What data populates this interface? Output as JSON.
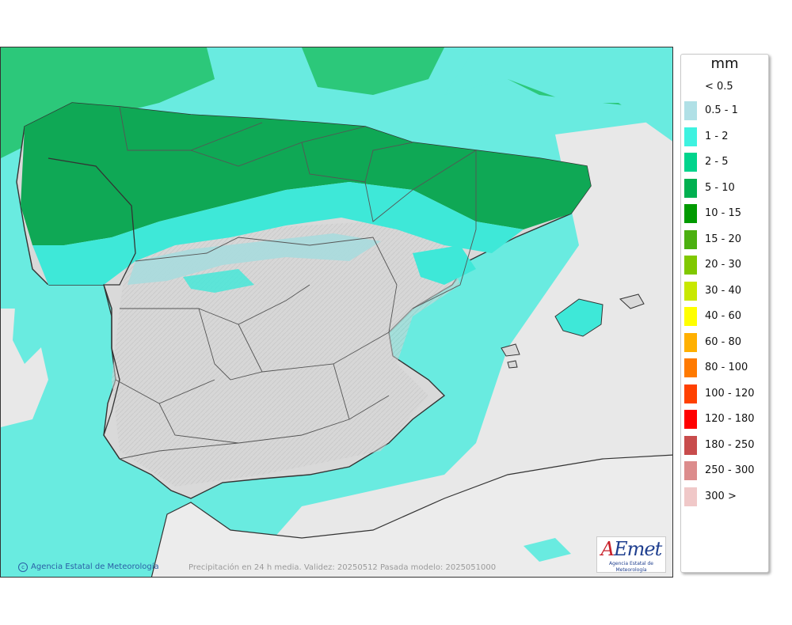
{
  "legend": {
    "unit": "mm",
    "first_label": "< 0.5",
    "items": [
      {
        "label": "0.5 - 1",
        "color": "#b0e0e6"
      },
      {
        "label": "1 - 2",
        "color": "#3ef2e0"
      },
      {
        "label": "2 - 5",
        "color": "#00d48c"
      },
      {
        "label": "5 - 10",
        "color": "#00b050"
      },
      {
        "label": "10 - 15",
        "color": "#009a00"
      },
      {
        "label": "15 - 20",
        "color": "#4bb010"
      },
      {
        "label": "20 - 30",
        "color": "#80c800"
      },
      {
        "label": "30 - 40",
        "color": "#c8e800"
      },
      {
        "label": "40 - 60",
        "color": "#ffff00"
      },
      {
        "label": "60 - 80",
        "color": "#ffb000"
      },
      {
        "label": "80 - 100",
        "color": "#ff7a00"
      },
      {
        "label": "100 - 120",
        "color": "#ff4000"
      },
      {
        "label": "120 - 180",
        "color": "#ff0000"
      },
      {
        "label": "180 - 250",
        "color": "#c84c4c"
      },
      {
        "label": "250 - 300",
        "color": "#dc8c8c"
      },
      {
        "label": "300 >",
        "color": "#f0c8c8"
      }
    ]
  },
  "footer": {
    "credit": "Agencia Estatal de Meteorología",
    "validity": "Precipitación en 24 h media. Validez: 20250512 Pasada modelo: 2025051000"
  },
  "logo": {
    "brand_a": "A",
    "brand_rest": "Emet",
    "subtitle": "Agencia Estatal de Meteorología"
  },
  "colors": {
    "sea_rain": "#69ebe0",
    "land_dry": "#d9d9d9",
    "foreign_land": "#ececec",
    "border_lines": "#333333"
  }
}
